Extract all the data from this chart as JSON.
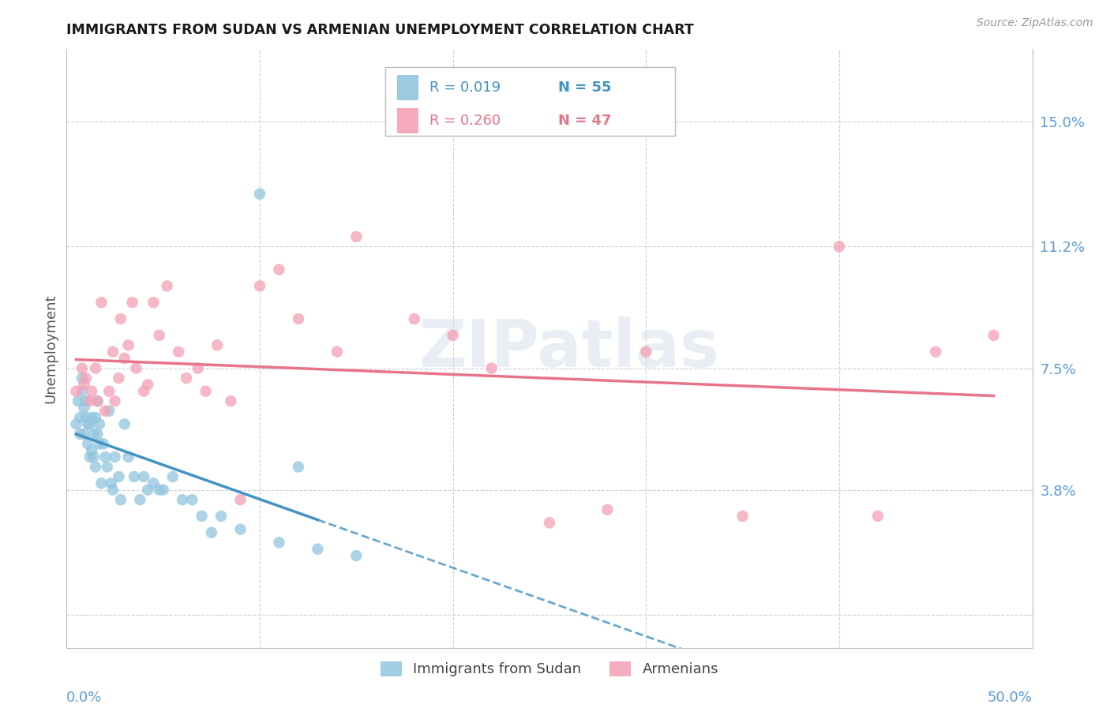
{
  "title": "IMMIGRANTS FROM SUDAN VS ARMENIAN UNEMPLOYMENT CORRELATION CHART",
  "source": "Source: ZipAtlas.com",
  "ylabel": "Unemployment",
  "yticks": [
    0.0,
    0.038,
    0.075,
    0.112,
    0.15
  ],
  "ytick_labels": [
    "",
    "3.8%",
    "7.5%",
    "11.2%",
    "15.0%"
  ],
  "xlim": [
    0.0,
    0.5
  ],
  "ylim": [
    -0.01,
    0.172
  ],
  "plot_ylim": [
    0.0,
    0.168
  ],
  "blue_color": "#92c5de",
  "pink_color": "#f4a0b5",
  "blue_line_color": "#4393c3",
  "pink_line_color": "#d6604d",
  "pink_line_color2": "#e8748a",
  "axis_color": "#5b9bd5",
  "grid_color": "#d0d0d0",
  "background_color": "#ffffff",
  "watermark": "ZIPatlas",
  "sudan_x": [
    0.005,
    0.006,
    0.007,
    0.007,
    0.008,
    0.008,
    0.009,
    0.009,
    0.01,
    0.01,
    0.011,
    0.011,
    0.012,
    0.012,
    0.013,
    0.013,
    0.014,
    0.014,
    0.015,
    0.015,
    0.016,
    0.016,
    0.017,
    0.017,
    0.018,
    0.019,
    0.02,
    0.021,
    0.022,
    0.023,
    0.024,
    0.025,
    0.027,
    0.028,
    0.03,
    0.032,
    0.035,
    0.038,
    0.04,
    0.042,
    0.045,
    0.048,
    0.05,
    0.055,
    0.06,
    0.065,
    0.07,
    0.075,
    0.08,
    0.09,
    0.1,
    0.11,
    0.12,
    0.13,
    0.15
  ],
  "sudan_y": [
    0.058,
    0.065,
    0.06,
    0.055,
    0.068,
    0.072,
    0.063,
    0.055,
    0.06,
    0.065,
    0.058,
    0.052,
    0.058,
    0.048,
    0.06,
    0.05,
    0.055,
    0.048,
    0.06,
    0.045,
    0.065,
    0.055,
    0.058,
    0.052,
    0.04,
    0.052,
    0.048,
    0.045,
    0.062,
    0.04,
    0.038,
    0.048,
    0.042,
    0.035,
    0.058,
    0.048,
    0.042,
    0.035,
    0.042,
    0.038,
    0.04,
    0.038,
    0.038,
    0.042,
    0.035,
    0.035,
    0.03,
    0.025,
    0.03,
    0.026,
    0.128,
    0.022,
    0.045,
    0.02,
    0.018
  ],
  "armenian_x": [
    0.005,
    0.008,
    0.009,
    0.01,
    0.012,
    0.013,
    0.015,
    0.016,
    0.018,
    0.02,
    0.022,
    0.024,
    0.025,
    0.027,
    0.028,
    0.03,
    0.032,
    0.034,
    0.036,
    0.04,
    0.042,
    0.045,
    0.048,
    0.052,
    0.058,
    0.062,
    0.068,
    0.072,
    0.078,
    0.085,
    0.09,
    0.1,
    0.11,
    0.12,
    0.14,
    0.15,
    0.18,
    0.2,
    0.22,
    0.25,
    0.28,
    0.3,
    0.35,
    0.4,
    0.42,
    0.45,
    0.48
  ],
  "armenian_y": [
    0.068,
    0.075,
    0.07,
    0.072,
    0.065,
    0.068,
    0.075,
    0.065,
    0.095,
    0.062,
    0.068,
    0.08,
    0.065,
    0.072,
    0.09,
    0.078,
    0.082,
    0.095,
    0.075,
    0.068,
    0.07,
    0.095,
    0.085,
    0.1,
    0.08,
    0.072,
    0.075,
    0.068,
    0.082,
    0.065,
    0.035,
    0.1,
    0.105,
    0.09,
    0.08,
    0.115,
    0.09,
    0.085,
    0.075,
    0.028,
    0.032,
    0.08,
    0.03,
    0.112,
    0.03,
    0.08,
    0.085
  ]
}
